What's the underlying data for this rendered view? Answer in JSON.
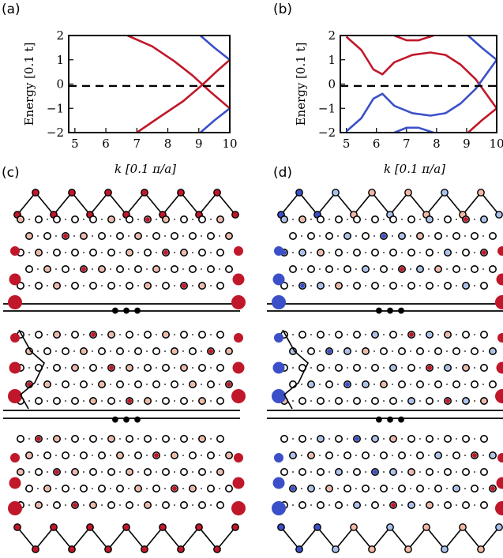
{
  "panels": {
    "a": {
      "label": "(a)"
    },
    "b": {
      "label": "(b)"
    },
    "c": {
      "label": "(c)"
    },
    "d": {
      "label": "(d)"
    }
  },
  "separator_text": "•••",
  "colors": {
    "red": "#c0182a",
    "blue": "#3b50c8",
    "light_red": "#f2b8a6",
    "light_blue": "#a9c2f0",
    "dashed": "#000000"
  },
  "chart_data": [
    {
      "type": "line",
      "panel": "a",
      "xlabel": "k [0.1 π/a]",
      "ylabel": "Energy [0.1 t]",
      "xlim": [
        4.8,
        10
      ],
      "ylim": [
        -2,
        2
      ],
      "xticks": [
        "5",
        "6",
        "7",
        "8",
        "9",
        "10"
      ],
      "yticks": [
        "2",
        "1",
        "0",
        "−1",
        "−2"
      ],
      "reference_line": {
        "y": -0.08,
        "style": "dashed"
      },
      "series": [
        {
          "color": "red",
          "x": [
            6.7,
            7.5,
            8.2,
            8.8,
            9.4,
            10.0
          ],
          "y": [
            2.0,
            1.55,
            0.95,
            0.35,
            -0.35,
            -1.0
          ]
        },
        {
          "color": "red",
          "x": [
            7.0,
            7.8,
            8.5,
            9.1,
            9.6,
            10.0
          ],
          "y": [
            -2.0,
            -1.3,
            -0.7,
            -0.05,
            0.55,
            1.0
          ]
        },
        {
          "color": "blue",
          "x": [
            9.05,
            9.5,
            10.0
          ],
          "y": [
            2.0,
            1.5,
            1.0
          ]
        },
        {
          "color": "blue",
          "x": [
            9.05,
            9.5,
            10.0
          ],
          "y": [
            -2.0,
            -1.5,
            -1.0
          ]
        }
      ]
    },
    {
      "type": "line",
      "panel": "b",
      "xlabel": "k [0.1 π/a]",
      "ylabel": "Energy [0.1 t]",
      "xlim": [
        4.8,
        10
      ],
      "ylim": [
        -2,
        2
      ],
      "xticks": [
        "5",
        "6",
        "7",
        "8",
        "9",
        "10"
      ],
      "yticks": [
        "2",
        "1",
        "0",
        "−1",
        "−2"
      ],
      "reference_line": {
        "y": -0.08,
        "style": "dashed"
      },
      "series": [
        {
          "color": "red",
          "x": [
            5.0,
            5.5,
            5.9,
            6.2,
            6.6,
            7.2,
            7.8,
            8.3,
            8.8,
            9.3,
            10.0
          ],
          "y": [
            1.95,
            1.4,
            0.6,
            0.4,
            0.9,
            1.2,
            1.3,
            1.2,
            0.8,
            0.2,
            -1.0
          ]
        },
        {
          "color": "blue",
          "x": [
            5.0,
            5.5,
            5.9,
            6.2,
            6.6,
            7.2,
            7.8,
            8.3,
            8.8,
            9.3,
            10.0
          ],
          "y": [
            -1.95,
            -1.4,
            -0.6,
            -0.4,
            -0.9,
            -1.2,
            -1.3,
            -1.2,
            -0.8,
            -0.2,
            1.0
          ]
        },
        {
          "color": "red",
          "x": [
            6.6,
            7.0,
            7.4,
            7.9
          ],
          "y": [
            2.0,
            1.8,
            1.8,
            2.0
          ]
        },
        {
          "color": "blue",
          "x": [
            6.6,
            7.0,
            7.4,
            7.9
          ],
          "y": [
            -2.0,
            -1.8,
            -1.8,
            -2.0
          ]
        },
        {
          "color": "blue",
          "x": [
            9.05,
            9.5,
            10.0
          ],
          "y": [
            2.0,
            1.5,
            1.0
          ]
        },
        {
          "color": "red",
          "x": [
            9.05,
            9.5,
            10.0
          ],
          "y": [
            -2.0,
            -1.5,
            -1.0
          ]
        }
      ]
    }
  ]
}
